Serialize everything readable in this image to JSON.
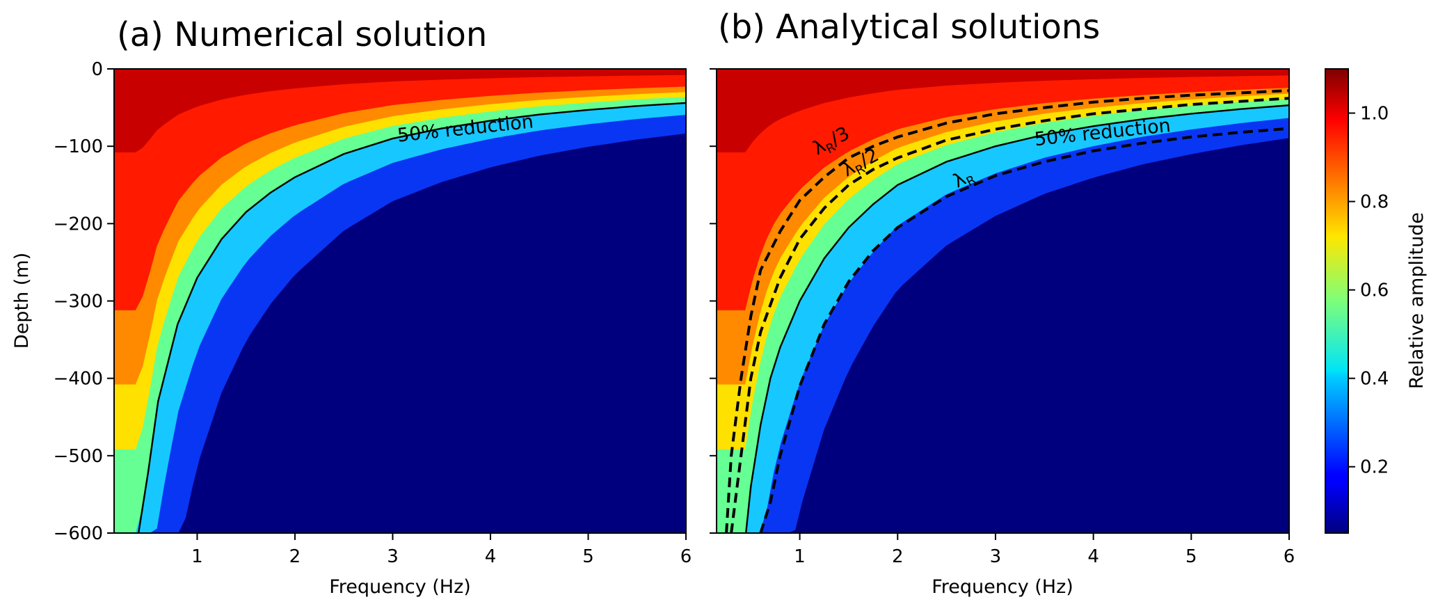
{
  "chart_data": [
    {
      "type": "heatmap",
      "title": "(a) Numerical solution",
      "xlabel": "Frequency (Hz)",
      "ylabel": "Depth (m)",
      "xlim": [
        0.15,
        6
      ],
      "ylim": [
        -600,
        0
      ],
      "xticks": [
        "1",
        "2",
        "3",
        "4",
        "5",
        "6"
      ],
      "yticks": [
        "0",
        "−100",
        "−200",
        "−300",
        "−400",
        "−500",
        "−600"
      ],
      "colormap": "jet",
      "contours": [
        {
          "name": "50% reduction",
          "style": "solid",
          "points": [
            [
              0.4,
              -600
            ],
            [
              0.5,
              -520
            ],
            [
              0.6,
              -430
            ],
            [
              0.8,
              -330
            ],
            [
              1.0,
              -270
            ],
            [
              1.25,
              -220
            ],
            [
              1.5,
              -185
            ],
            [
              1.75,
              -160
            ],
            [
              2.0,
              -140
            ],
            [
              2.5,
              -110
            ],
            [
              3.0,
              -90
            ],
            [
              3.5,
              -77
            ],
            [
              4.0,
              -67
            ],
            [
              4.5,
              -59
            ],
            [
              5.0,
              -53
            ],
            [
              5.5,
              -48
            ],
            [
              6.0,
              -44
            ]
          ]
        }
      ],
      "annotations": [
        {
          "text": "50% reduction",
          "x": 3.75,
          "y": -85
        }
      ]
    },
    {
      "type": "heatmap",
      "title": "(b) Analytical solutions",
      "xlabel": "Frequency (Hz)",
      "ylabel": "",
      "xlim": [
        0.15,
        6
      ],
      "ylim": [
        -600,
        0
      ],
      "xticks": [
        "1",
        "2",
        "3",
        "4",
        "5",
        "6"
      ],
      "colormap": "jet",
      "contours": [
        {
          "name": "λR/3",
          "style": "dashed",
          "points": [
            [
              0.25,
              -600
            ],
            [
              0.3,
              -500
            ],
            [
              0.4,
              -400
            ],
            [
              0.5,
              -320
            ],
            [
              0.6,
              -260
            ],
            [
              0.8,
              -210
            ],
            [
              1.0,
              -170
            ],
            [
              1.25,
              -140
            ],
            [
              1.5,
              -115
            ],
            [
              1.75,
              -100
            ],
            [
              2.0,
              -88
            ],
            [
              2.5,
              -70
            ],
            [
              3.0,
              -58
            ],
            [
              3.5,
              -50
            ],
            [
              4.0,
              -43
            ],
            [
              4.5,
              -38
            ],
            [
              5.0,
              -34
            ],
            [
              5.5,
              -31
            ],
            [
              6.0,
              -28
            ]
          ]
        },
        {
          "name": "λR/2",
          "style": "dashed",
          "points": [
            [
              0.3,
              -600
            ],
            [
              0.4,
              -500
            ],
            [
              0.5,
              -400
            ],
            [
              0.6,
              -340
            ],
            [
              0.8,
              -270
            ],
            [
              1.0,
              -220
            ],
            [
              1.25,
              -180
            ],
            [
              1.5,
              -150
            ],
            [
              1.75,
              -130
            ],
            [
              2.0,
              -115
            ],
            [
              2.5,
              -92
            ],
            [
              3.0,
              -78
            ],
            [
              3.5,
              -67
            ],
            [
              4.0,
              -58
            ],
            [
              4.5,
              -52
            ],
            [
              5.0,
              -46
            ],
            [
              5.5,
              -42
            ],
            [
              6.0,
              -38
            ]
          ]
        },
        {
          "name": "50% reduction",
          "style": "solid",
          "points": [
            [
              0.45,
              -600
            ],
            [
              0.5,
              -540
            ],
            [
              0.6,
              -460
            ],
            [
              0.7,
              -400
            ],
            [
              0.8,
              -360
            ],
            [
              1.0,
              -300
            ],
            [
              1.25,
              -245
            ],
            [
              1.5,
              -205
            ],
            [
              1.75,
              -175
            ],
            [
              2.0,
              -150
            ],
            [
              2.5,
              -120
            ],
            [
              3.0,
              -100
            ],
            [
              3.5,
              -85
            ],
            [
              4.0,
              -74
            ],
            [
              4.5,
              -65
            ],
            [
              5.0,
              -58
            ],
            [
              5.5,
              -52
            ],
            [
              6.0,
              -47
            ]
          ]
        },
        {
          "name": "λR",
          "style": "dashed",
          "points": [
            [
              0.6,
              -600
            ],
            [
              0.7,
              -560
            ],
            [
              0.8,
              -500
            ],
            [
              1.0,
              -410
            ],
            [
              1.25,
              -330
            ],
            [
              1.5,
              -275
            ],
            [
              1.75,
              -235
            ],
            [
              2.0,
              -205
            ],
            [
              2.5,
              -165
            ],
            [
              3.0,
              -138
            ],
            [
              3.5,
              -120
            ],
            [
              4.0,
              -106
            ],
            [
              4.5,
              -96
            ],
            [
              5.0,
              -88
            ],
            [
              5.5,
              -82
            ],
            [
              6.0,
              -77
            ]
          ]
        }
      ],
      "annotations": [
        {
          "text": "λR/3",
          "x": 1.35,
          "y": -100
        },
        {
          "text": "λR/2",
          "x": 1.65,
          "y": -128
        },
        {
          "text": "λR",
          "x": 2.7,
          "y": -148
        },
        {
          "text": "50% reduction",
          "x": 4.1,
          "y": -90
        }
      ]
    }
  ],
  "colorbar": {
    "label": "Relative amplitude",
    "range": [
      0.05,
      1.1
    ],
    "ticks": [
      "0.2",
      "0.4",
      "0.6",
      "0.8",
      "1.0"
    ],
    "tick_values": [
      0.2,
      0.4,
      0.6,
      0.8,
      1.0
    ]
  }
}
